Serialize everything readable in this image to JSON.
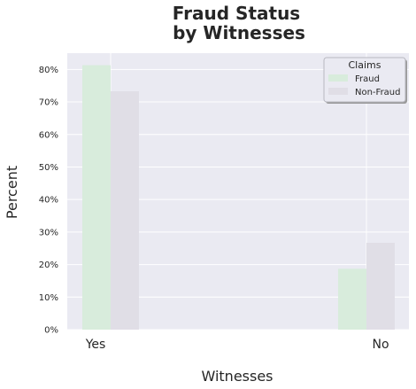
{
  "chart_data": {
    "type": "bar",
    "title_lines": [
      "Fraud Status",
      "by Witnesses"
    ],
    "xlabel": "Witnesses",
    "ylabel": "Percent",
    "categories": [
      "Yes",
      "No"
    ],
    "series": [
      {
        "name": "Fraud",
        "values": [
          81.3,
          18.7
        ],
        "color": "#d8ecdc"
      },
      {
        "name": "Non-Fraud",
        "values": [
          73.3,
          26.7
        ],
        "color": "#e0dee6"
      }
    ],
    "ylim": [
      0,
      85
    ],
    "yticks": [
      0,
      10,
      20,
      30,
      40,
      50,
      60,
      70,
      80
    ],
    "ytick_labels": [
      "0%",
      "10%",
      "20%",
      "30%",
      "40%",
      "50%",
      "60%",
      "70%",
      "80%"
    ],
    "grid": true,
    "legend": {
      "title": "Claims",
      "placement": "top-right"
    },
    "colors": {
      "plot_background": "#eaeaf2",
      "grid": "#ffffff"
    }
  }
}
